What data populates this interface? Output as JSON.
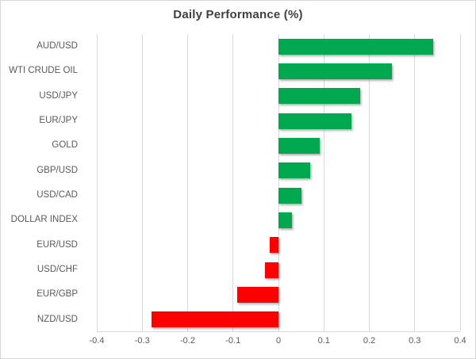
{
  "chart_data": {
    "type": "bar",
    "orientation": "horizontal",
    "title": "Daily Performance (%)",
    "categories": [
      "AUD/USD",
      "WTI CRUDE OIL",
      "USD/JPY",
      "EUR/JPY",
      "GOLD",
      "GBP/USD",
      "USD/CAD",
      "DOLLAR INDEX",
      "EUR/USD",
      "USD/CHF",
      "EUR/GBP",
      "NZD/USD"
    ],
    "values": [
      0.34,
      0.25,
      0.18,
      0.16,
      0.09,
      0.07,
      0.05,
      0.03,
      -0.02,
      -0.03,
      -0.09,
      -0.28
    ],
    "xlim": [
      -0.4,
      0.4
    ],
    "x_ticks": [
      -0.4,
      -0.3,
      -0.2,
      -0.1,
      0,
      0.1,
      0.2,
      0.3,
      0.4
    ],
    "x_tick_labels": [
      "-0.4",
      "-0.3",
      "-0.2",
      "-0.1",
      "0",
      "0.1",
      "0.2",
      "0.3",
      "0.4"
    ],
    "grid": "vertical",
    "legend": "none",
    "positive_color": "#00a94f",
    "negative_color": "#ff0000",
    "gridline_color": "#d9d9d9",
    "title_color": "#404040",
    "label_color": "#595959"
  }
}
